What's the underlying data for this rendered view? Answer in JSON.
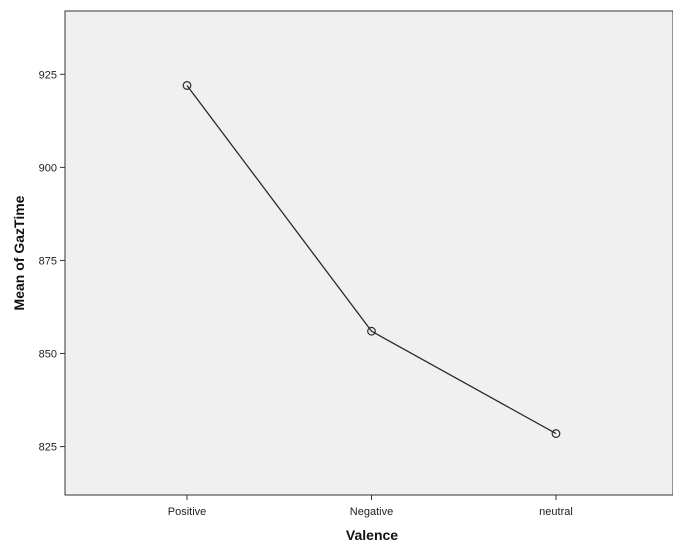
{
  "chart_data": {
    "type": "line",
    "categories": [
      "Positive",
      "Negative",
      "neutral"
    ],
    "values": [
      922,
      856,
      828.5
    ],
    "xlabel": "Valence",
    "ylabel": "Mean of GazTime",
    "ylim": [
      812,
      942
    ],
    "yticks": [
      825,
      850,
      875,
      900,
      925
    ],
    "grid": false,
    "markers": "open-circle",
    "colors": {
      "plot_background": "#f0f0f0",
      "line": "#2a2a2a",
      "axis": "#333333"
    }
  }
}
